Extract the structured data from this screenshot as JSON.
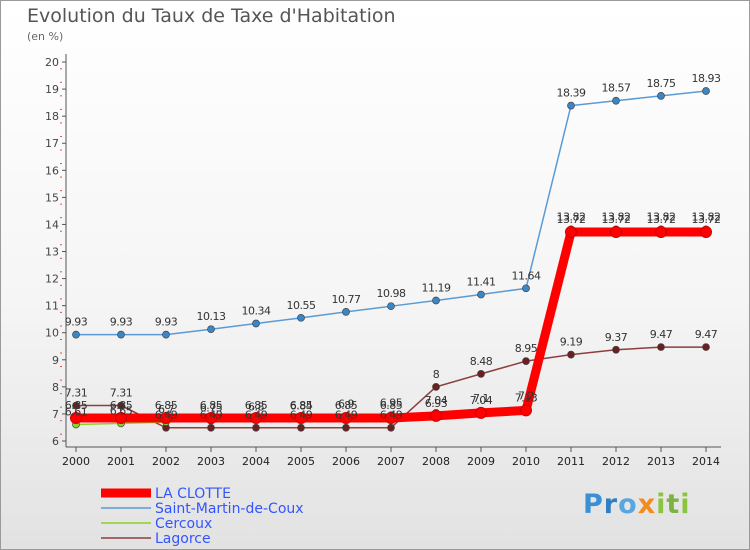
{
  "chart_data": {
    "type": "line",
    "title": "Evolution du Taux de Taxe d'Habitation",
    "subtitle": "(en %)",
    "ylim": [
      6,
      20
    ],
    "yticks": [
      6,
      7,
      8,
      9,
      10,
      11,
      12,
      13,
      14,
      15,
      16,
      17,
      18,
      19,
      20
    ],
    "categories": [
      "2000",
      "2001",
      "2002",
      "2003",
      "2004",
      "2005",
      "2006",
      "2007",
      "2008",
      "2009",
      "2010",
      "2011",
      "2012",
      "2013",
      "2014"
    ],
    "grid": false,
    "legend_position": "bottom-left",
    "series": [
      {
        "name": "LA CLOTTE",
        "color": "#ff0000",
        "marker": "#ff0000",
        "values": [
          6.85,
          6.85,
          6.85,
          6.85,
          6.85,
          6.85,
          6.85,
          6.85,
          6.93,
          7.04,
          7.13,
          13.72,
          13.72,
          13.72,
          13.72
        ]
      },
      {
        "name": "Saint-Martin-de-Coux",
        "color": "#5b9bd5",
        "marker": "#3a87c8",
        "values": [
          9.93,
          9.93,
          9.93,
          10.13,
          10.34,
          10.55,
          10.77,
          10.98,
          11.19,
          11.41,
          11.64,
          18.39,
          18.57,
          18.75,
          18.93
        ]
      },
      {
        "name": "Cercoux",
        "color": "#8bd12c",
        "marker": "#8bd12c",
        "values": [
          6.61,
          6.65,
          6.7,
          6.75,
          6.8,
          6.84,
          6.9,
          6.95,
          7.04,
          7.1,
          7.2,
          13.82,
          13.82,
          13.82,
          13.82
        ]
      },
      {
        "name": "Lagorce",
        "color": "#8c3f3f",
        "marker": "#6b2020",
        "values": [
          7.31,
          7.31,
          6.49,
          6.49,
          6.49,
          6.49,
          6.49,
          6.49,
          8.0,
          8.48,
          8.95,
          9.19,
          9.37,
          9.47,
          9.47
        ]
      }
    ]
  },
  "logo": {
    "letters": [
      "P",
      "r",
      "o",
      "x",
      "i",
      "t",
      "i"
    ],
    "colors": [
      "#3a8fd6",
      "#2f7fc4",
      "#5aa7e0",
      "#f28c1e",
      "#8bc53f",
      "#7cb342",
      "#8bc53f"
    ]
  }
}
